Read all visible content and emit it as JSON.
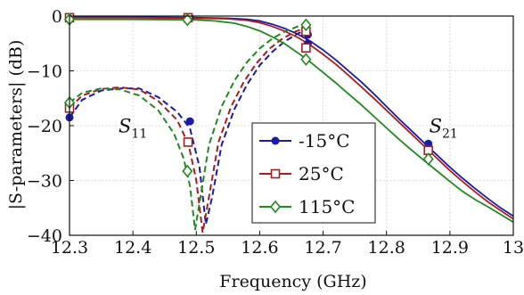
{
  "chart_data": {
    "type": "line",
    "xlabel": "Frequency (GHz)",
    "ylabel": "|S-parameters| (dB)",
    "xlim": [
      12.3,
      13.0
    ],
    "ylim": [
      -40,
      0
    ],
    "xticks": [
      12.3,
      12.4,
      12.5,
      12.6,
      12.7,
      12.8,
      12.9,
      13.0
    ],
    "xtick_labels": [
      "12.3",
      "12.4",
      "12.5",
      "12.6",
      "12.7",
      "12.8",
      "12.9",
      "13"
    ],
    "yticks": [
      0,
      -10,
      -20,
      -30,
      -40
    ],
    "ytick_labels": [
      "0",
      "−10",
      "−20",
      "−30",
      "−40"
    ],
    "grid": true,
    "legend_position": "center",
    "annotations": [
      {
        "text": "S",
        "sub": "11",
        "x": 12.4,
        "y": -21.2
      },
      {
        "text": "S",
        "sub": "21",
        "x": 12.89,
        "y": -21.2
      }
    ],
    "series": [
      {
        "name": "-15°C",
        "color": "#1a1aa6",
        "marker": "circle",
        "s11": {
          "x": [
            12.3,
            12.32,
            12.35,
            12.38,
            12.41,
            12.44,
            12.47,
            12.49,
            12.505,
            12.515,
            12.525,
            12.54,
            12.56,
            12.58,
            12.6,
            12.62,
            12.64,
            12.66,
            12.68
          ],
          "y": [
            -18.5,
            -15.3,
            -13.6,
            -13.2,
            -13.2,
            -14.8,
            -17.5,
            -20.5,
            -27.5,
            -38.0,
            -33.0,
            -23.5,
            -17.0,
            -12.5,
            -9.0,
            -6.5,
            -4.6,
            -3.2,
            -2.2
          ]
        },
        "s21": {
          "x": [
            12.3,
            12.4,
            12.5,
            12.55,
            12.58,
            12.6,
            12.62,
            12.64,
            12.66,
            12.68,
            12.7,
            12.72,
            12.74,
            12.76,
            12.78,
            12.8,
            12.82,
            12.84,
            12.86,
            12.88,
            12.9,
            12.92,
            12.94,
            12.96,
            12.98,
            13.0
          ],
          "y": [
            -0.2,
            -0.2,
            -0.3,
            -0.4,
            -0.6,
            -0.9,
            -1.5,
            -2.3,
            -3.3,
            -4.6,
            -6.2,
            -8.0,
            -10.0,
            -12.0,
            -14.2,
            -16.5,
            -18.8,
            -21.0,
            -23.2,
            -25.4,
            -27.6,
            -29.6,
            -31.5,
            -33.3,
            -35.0,
            -36.5
          ]
        },
        "markers_s11": [
          [
            12.3,
            -18.5
          ],
          [
            12.49,
            -19.2
          ],
          [
            12.676,
            -3.4
          ]
        ],
        "markers_s21": [
          [
            12.3,
            -0.2
          ],
          [
            12.49,
            -0.3
          ],
          [
            12.676,
            -5.0
          ],
          [
            12.866,
            -23.3
          ]
        ]
      },
      {
        "name": "25°C",
        "color": "#a81e1e",
        "marker": "square",
        "s11": {
          "x": [
            12.3,
            12.32,
            12.35,
            12.38,
            12.41,
            12.44,
            12.47,
            12.488,
            12.5,
            12.51,
            12.52,
            12.535,
            12.555,
            12.575,
            12.595,
            12.615,
            12.635,
            12.655,
            12.675
          ],
          "y": [
            -16.8,
            -14.5,
            -13.3,
            -13.0,
            -13.4,
            -15.5,
            -19.0,
            -23.5,
            -30.0,
            -39.5,
            -33.0,
            -23.0,
            -16.5,
            -12.0,
            -8.6,
            -6.0,
            -4.2,
            -2.9,
            -2.0
          ]
        },
        "s21": {
          "x": [
            12.3,
            12.4,
            12.5,
            12.55,
            12.58,
            12.6,
            12.62,
            12.64,
            12.66,
            12.68,
            12.7,
            12.72,
            12.74,
            12.76,
            12.78,
            12.8,
            12.82,
            12.84,
            12.86,
            12.88,
            12.9,
            12.92,
            12.94,
            12.96,
            12.98,
            13.0
          ],
          "y": [
            -0.3,
            -0.3,
            -0.4,
            -0.5,
            -0.8,
            -1.2,
            -1.9,
            -2.8,
            -3.9,
            -5.3,
            -7.0,
            -8.8,
            -10.8,
            -12.9,
            -15.0,
            -17.2,
            -19.4,
            -21.6,
            -23.8,
            -26.0,
            -28.2,
            -30.2,
            -32.1,
            -33.9,
            -35.5,
            -37.0
          ]
        },
        "markers_s11": [
          [
            12.3,
            -16.8
          ],
          [
            12.487,
            -23.0
          ],
          [
            12.673,
            -2.8
          ]
        ],
        "markers_s21": [
          [
            12.3,
            -0.3
          ],
          [
            12.487,
            -0.3
          ],
          [
            12.673,
            -5.8
          ],
          [
            12.866,
            -24.5
          ]
        ]
      },
      {
        "name": "115°C",
        "color": "#1f8a1f",
        "marker": "diamond",
        "s11": {
          "x": [
            12.3,
            12.32,
            12.35,
            12.38,
            12.41,
            12.44,
            12.465,
            12.48,
            12.49,
            12.498,
            12.508,
            12.52,
            12.54,
            12.56,
            12.58,
            12.6,
            12.62,
            12.64,
            12.66,
            12.675
          ],
          "y": [
            -15.8,
            -14.0,
            -13.2,
            -13.4,
            -14.5,
            -17.2,
            -21.5,
            -26.0,
            -31.0,
            -39.0,
            -32.0,
            -23.5,
            -16.5,
            -11.8,
            -8.4,
            -5.9,
            -4.1,
            -2.8,
            -1.9,
            -1.5
          ]
        },
        "s21": {
          "x": [
            12.3,
            12.4,
            12.5,
            12.53,
            12.56,
            12.58,
            12.6,
            12.62,
            12.64,
            12.66,
            12.68,
            12.7,
            12.72,
            12.74,
            12.76,
            12.78,
            12.8,
            12.82,
            12.84,
            12.86,
            12.88,
            12.9,
            12.92,
            12.94,
            12.96,
            12.98,
            13.0
          ],
          "y": [
            -0.6,
            -0.6,
            -0.7,
            -0.9,
            -1.3,
            -1.9,
            -2.7,
            -3.8,
            -5.1,
            -6.7,
            -8.4,
            -10.3,
            -12.2,
            -14.2,
            -16.2,
            -18.3,
            -20.4,
            -22.5,
            -24.5,
            -26.4,
            -28.3,
            -30.2,
            -32.0,
            -33.5,
            -34.8,
            -36.2,
            -37.6
          ]
        },
        "markers_s11": [
          [
            12.3,
            -15.8
          ],
          [
            12.486,
            -28.3
          ],
          [
            12.673,
            -1.6
          ]
        ],
        "markers_s21": [
          [
            12.3,
            -0.6
          ],
          [
            12.486,
            -0.7
          ],
          [
            12.673,
            -7.9
          ],
          [
            12.866,
            -26.1
          ]
        ]
      }
    ]
  }
}
